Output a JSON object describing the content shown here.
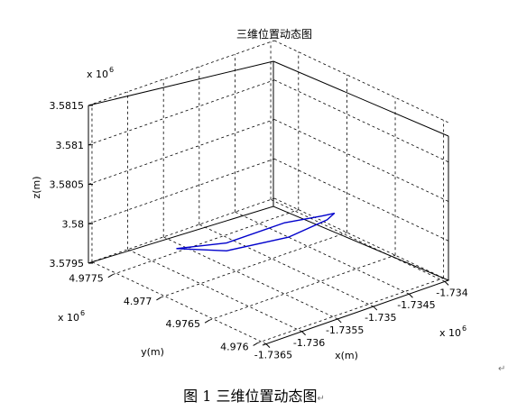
{
  "chart_data": {
    "type": "line3d",
    "title": "三维位置动态图",
    "xlabel": "x(m)",
    "ylabel": "y(m)",
    "zlabel": "z(m)",
    "x_scale_label": "x 10",
    "x_scale_exp": "6",
    "y_scale_label": "x 10",
    "y_scale_exp": "6",
    "z_scale_label": "x 10",
    "z_scale_exp": "6",
    "xlim": [
      -1.73655,
      -1.73395
    ],
    "ylim": [
      4.97595,
      4.97775
    ],
    "zlim": [
      3.5795,
      3.5815
    ],
    "x_ticks": [
      "-1.7365",
      "-1.736",
      "-1.7355",
      "-1.735",
      "-1.7345",
      "-1.734"
    ],
    "y_ticks": [
      "4.976",
      "4.9765",
      "4.977",
      "4.9775"
    ],
    "z_ticks": [
      "3.5795",
      "3.58",
      "3.5805",
      "3.581",
      "3.5815"
    ],
    "grid": true,
    "series": [
      {
        "color": "#0000cc",
        "points": [
          [
            -1.7362,
            4.9771,
            3.57995
          ],
          [
            -1.7357,
            4.97695,
            3.57995
          ],
          [
            -1.7351,
            4.9768,
            3.5801
          ],
          [
            -1.7347,
            4.9767,
            3.58012
          ],
          [
            -1.7346,
            4.97665,
            3.58015
          ],
          [
            -1.7347,
            4.97665,
            3.5801
          ],
          [
            -1.7351,
            4.97675,
            3.57995
          ],
          [
            -1.7357,
            4.97695,
            3.57985
          ],
          [
            -1.7362,
            4.9771,
            3.57995
          ]
        ]
      }
    ]
  },
  "caption": {
    "text": "图 1  三维位置动态图",
    "return_mark": "↵"
  }
}
